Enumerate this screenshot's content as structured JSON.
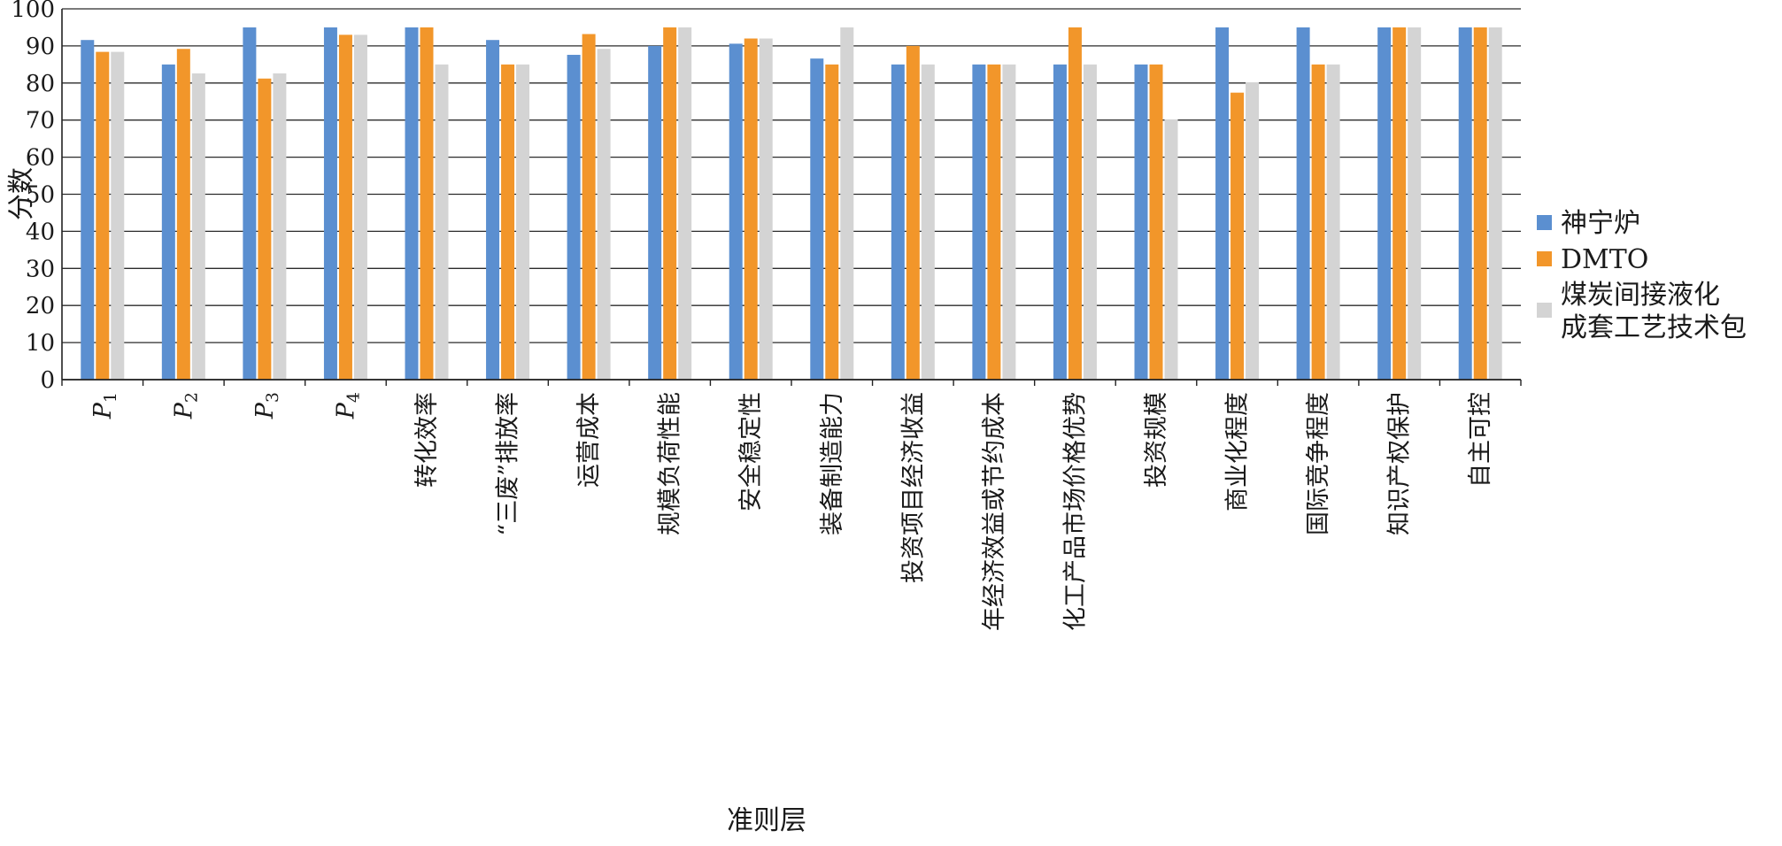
{
  "chart_data": {
    "type": "bar",
    "ylabel": "分数",
    "xlabel": "准则层",
    "ylim": [
      0,
      100
    ],
    "yticks": [
      0,
      10,
      20,
      30,
      40,
      50,
      60,
      70,
      80,
      90,
      100
    ],
    "grid": true,
    "legend_position": "right",
    "categories": [
      {
        "label": "P",
        "sub": "1"
      },
      {
        "label": "P",
        "sub": "2"
      },
      {
        "label": "P",
        "sub": "3"
      },
      {
        "label": "P",
        "sub": "4"
      },
      {
        "label": "转化效率"
      },
      {
        "label": "“三废”排放率"
      },
      {
        "label": "运营成本"
      },
      {
        "label": "规模负荷性能"
      },
      {
        "label": "安全稳定性"
      },
      {
        "label": "装备制造能力"
      },
      {
        "label": "投资项目经济收益"
      },
      {
        "label": "年经济效益或节约成本"
      },
      {
        "label": "化工产品市场价格优势"
      },
      {
        "label": "投资规模"
      },
      {
        "label": "商业化程度"
      },
      {
        "label": "国际竞争程度"
      },
      {
        "label": "知识产权保护"
      },
      {
        "label": "自主可控"
      }
    ],
    "series": [
      {
        "name": "神宁炉",
        "color": "#5b8fd0",
        "values": [
          91.6,
          85,
          95,
          95,
          95,
          91.6,
          87.6,
          90,
          90.6,
          86.6,
          85,
          85,
          85,
          85,
          95,
          95,
          95,
          95
        ]
      },
      {
        "name": "DMTO",
        "color": "#f2962a",
        "values": [
          88.4,
          89.2,
          81.2,
          93,
          95,
          85,
          93.2,
          95,
          92,
          85,
          90,
          85,
          95,
          85,
          77.4,
          85,
          95,
          95
        ]
      },
      {
        "name": "煤炭间接液化成套工艺技术包",
        "name_lines": [
          "煤炭间接液化",
          "成套工艺技术包"
        ],
        "color": "#d4d4d4",
        "values": [
          88.4,
          82.6,
          82.6,
          93,
          85,
          85,
          89.2,
          95,
          92,
          95,
          85,
          85,
          85,
          70.2,
          80.2,
          85,
          95,
          95
        ]
      }
    ]
  }
}
